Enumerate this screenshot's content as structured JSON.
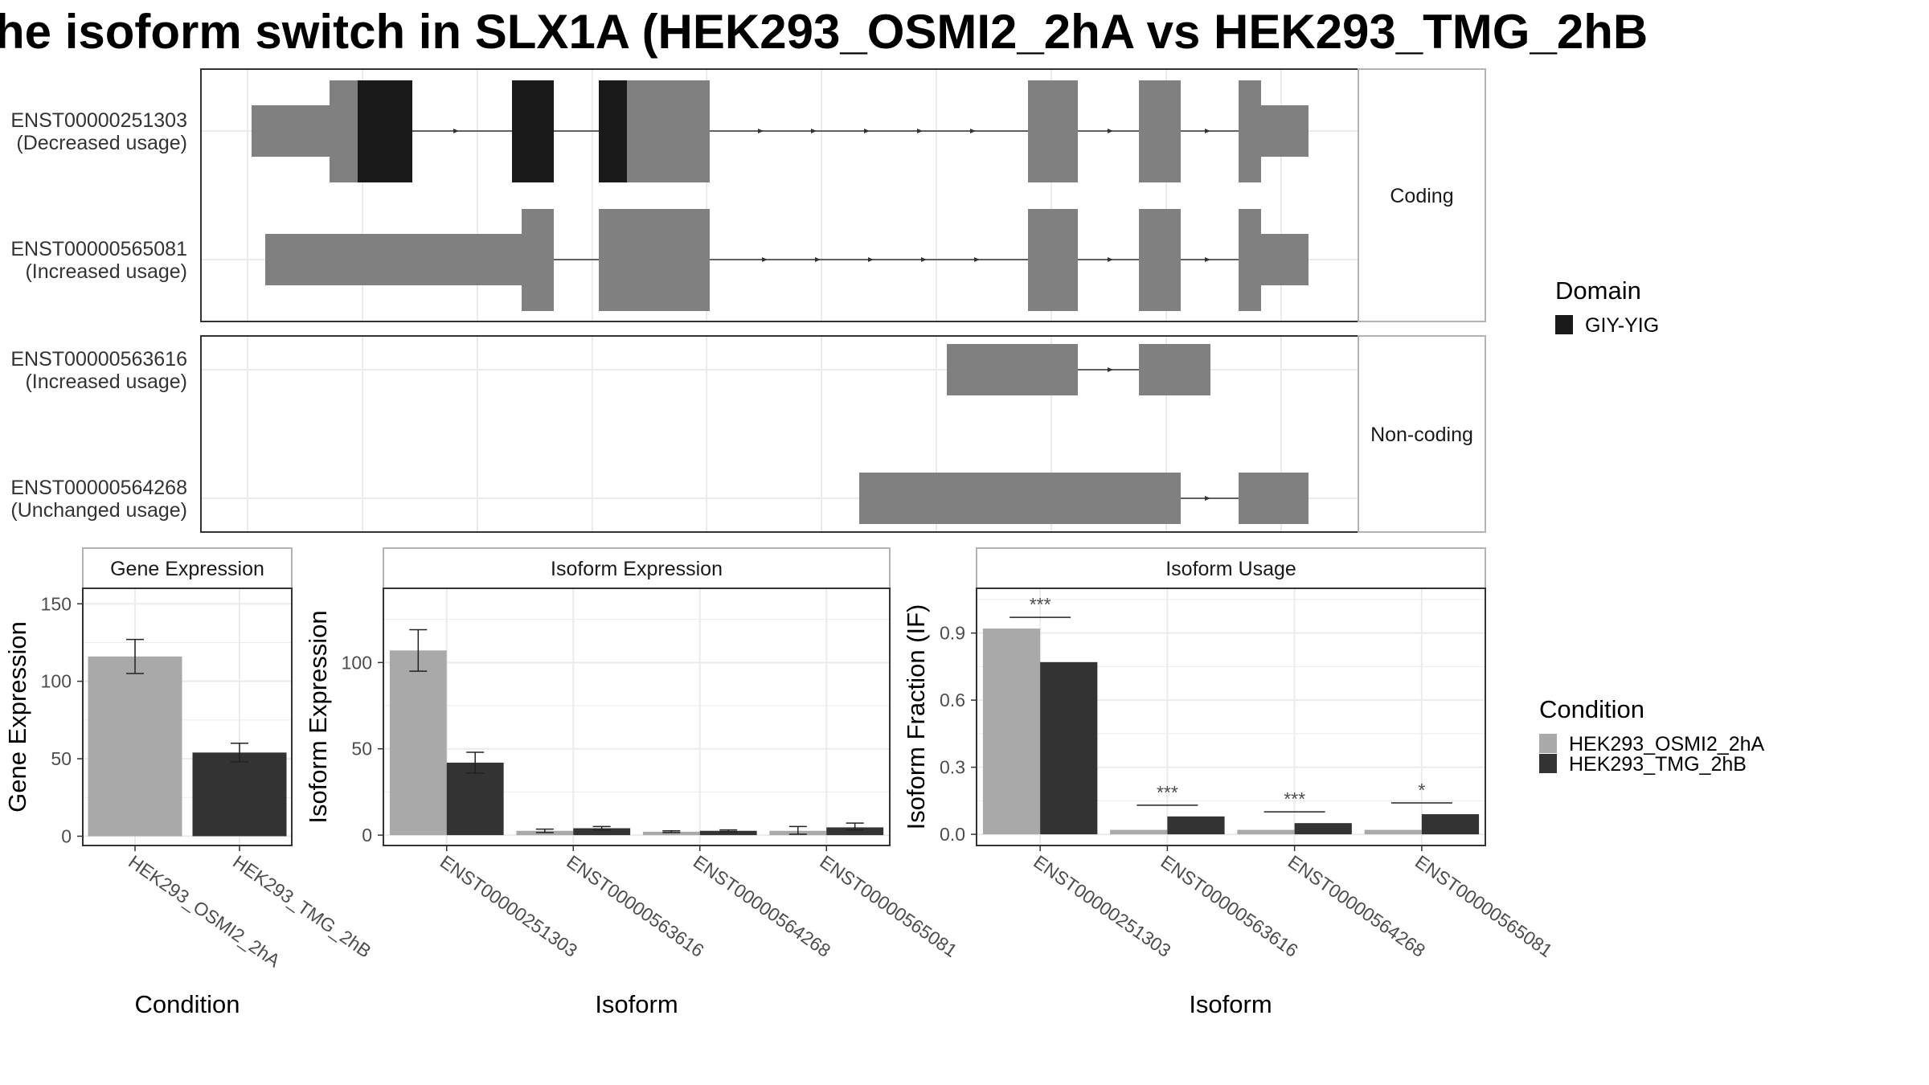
{
  "title": "he isoform switch in SLX1A (HEK293_OSMI2_2hA vs HEK293_TMG_2hB",
  "colors": {
    "domain": "#1a1a1a",
    "exon": "#808080",
    "cond_a": "#a9a9a9",
    "cond_b": "#333333"
  },
  "structure": {
    "facets": [
      "Coding",
      "Non-coding"
    ],
    "transcripts": [
      {
        "id": "ENST00000251303",
        "usage": "(Decreased usage)"
      },
      {
        "id": "ENST00000565081",
        "usage": "(Increased usage)"
      },
      {
        "id": "ENST00000563616",
        "usage": "(Increased usage)"
      },
      {
        "id": "ENST00000564268",
        "usage": "(Unchanged usage)"
      }
    ],
    "legend_title": "Domain",
    "legend_item": "GIY-YIG"
  },
  "condition_legend": {
    "title": "Condition",
    "items": [
      "HEK293_OSMI2_2hA",
      "HEK293_TMG_2hB"
    ]
  },
  "chart_data": [
    {
      "type": "bar",
      "title": "Gene Expression",
      "xlabel": "Condition",
      "ylabel": "Gene Expression",
      "categories": [
        "HEK293_OSMI2_2hA",
        "HEK293_TMG_2hB"
      ],
      "values": [
        116,
        54
      ],
      "errors": [
        [
          105,
          127
        ],
        [
          48,
          60
        ]
      ],
      "yticks": [
        "0",
        "50",
        "100",
        "150"
      ],
      "ylim": [
        -6,
        160
      ]
    },
    {
      "type": "bar",
      "title": "Isoform Expression",
      "xlabel": "Isoform",
      "ylabel": "Isoform Expression",
      "categories": [
        "ENST00000251303",
        "ENST00000563616",
        "ENST00000564268",
        "ENST00000565081"
      ],
      "series": [
        {
          "name": "HEK293_OSMI2_2hA",
          "values": [
            107,
            2.5,
            2,
            2.5
          ],
          "errors": [
            [
              95,
              119
            ],
            [
              1.5,
              3.5
            ],
            [
              1.5,
              2.5
            ],
            [
              0.5,
              5
            ]
          ]
        },
        {
          "name": "HEK293_TMG_2hB",
          "values": [
            42,
            4,
            2.5,
            4.5
          ],
          "errors": [
            [
              36,
              48
            ],
            [
              3,
              5
            ],
            [
              2,
              3
            ],
            [
              3,
              7
            ]
          ]
        }
      ],
      "yticks": [
        "0",
        "50",
        "100"
      ],
      "ylim": [
        -6,
        143
      ]
    },
    {
      "type": "bar",
      "title": "Isoform Usage",
      "xlabel": "Isoform",
      "ylabel": "Isoform Fraction (IF)",
      "categories": [
        "ENST00000251303",
        "ENST00000563616",
        "ENST00000564268",
        "ENST00000565081"
      ],
      "series": [
        {
          "name": "HEK293_OSMI2_2hA",
          "values": [
            0.92,
            0.02,
            0.02,
            0.02
          ]
        },
        {
          "name": "HEK293_TMG_2hB",
          "values": [
            0.77,
            0.08,
            0.05,
            0.09
          ]
        }
      ],
      "significance": [
        "***",
        "***",
        "***",
        "*"
      ],
      "yticks": [
        "0.0",
        "0.3",
        "0.6",
        "0.9"
      ],
      "ylim": [
        -0.05,
        1.1
      ]
    }
  ]
}
